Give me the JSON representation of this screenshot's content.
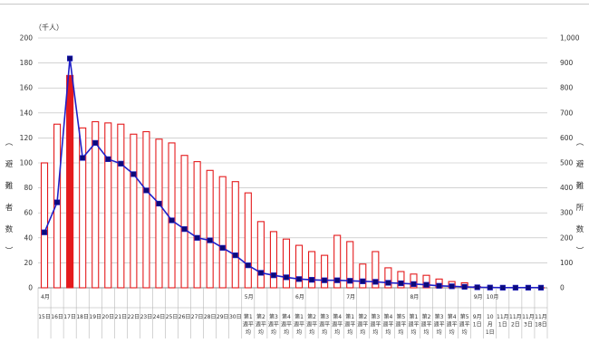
{
  "chart_data": {
    "type": "bar",
    "unit_label": "（千人）",
    "ylabel_left": "避難者数",
    "ylabel_right": "避難所数",
    "ylim_left": [
      0,
      200
    ],
    "ylim_right": [
      0,
      1000
    ],
    "yticks_left": [
      "0",
      "20",
      "40",
      "60",
      "80",
      "100",
      "120",
      "140",
      "160",
      "180",
      "200"
    ],
    "yticks_right": [
      "0",
      "100",
      "200",
      "300",
      "400",
      "500",
      "600",
      "700",
      "800",
      "900",
      "1,000"
    ],
    "grid": true,
    "month_labels": [
      {
        "index": 0,
        "text": "4月"
      },
      {
        "index": 16,
        "text": "5月"
      },
      {
        "index": 20,
        "text": "6月"
      },
      {
        "index": 24,
        "text": "7月"
      },
      {
        "index": 29,
        "text": "8月"
      },
      {
        "index": 34,
        "text": "9月"
      },
      {
        "index": 35,
        "text": "10月"
      }
    ],
    "categories": [
      [
        "15日"
      ],
      [
        "16日"
      ],
      [
        "17日"
      ],
      [
        "18日"
      ],
      [
        "19日"
      ],
      [
        "20日"
      ],
      [
        "21日"
      ],
      [
        "22日"
      ],
      [
        "23日"
      ],
      [
        "24日"
      ],
      [
        "25日"
      ],
      [
        "26日"
      ],
      [
        "27日"
      ],
      [
        "28日"
      ],
      [
        "29日"
      ],
      [
        "30日"
      ],
      [
        "第1",
        "週平",
        "均"
      ],
      [
        "第2",
        "週平",
        "均"
      ],
      [
        "第3",
        "週平",
        "均"
      ],
      [
        "第4",
        "週平",
        "均"
      ],
      [
        "第1",
        "週平",
        "均"
      ],
      [
        "第2",
        "週平",
        "均"
      ],
      [
        "第3",
        "週平",
        "均"
      ],
      [
        "第4",
        "週平",
        "均"
      ],
      [
        "第1",
        "週平",
        "均"
      ],
      [
        "第2",
        "週平",
        "均"
      ],
      [
        "第3",
        "週平",
        "均"
      ],
      [
        "第4",
        "週平",
        "均"
      ],
      [
        "第5",
        "週平",
        "均"
      ],
      [
        "第1",
        "週平",
        "均"
      ],
      [
        "第2",
        "週平",
        "均"
      ],
      [
        "第3",
        "週平",
        "均"
      ],
      [
        "第4",
        "週平",
        "均"
      ],
      [
        "第5",
        "週平",
        "均"
      ],
      [
        "9月",
        "1日"
      ],
      [
        "10",
        "月",
        "1日"
      ],
      [
        "11月",
        "1日"
      ],
      [
        "11月",
        "2日"
      ],
      [
        "11月",
        "3日"
      ],
      [
        "11月",
        "18日"
      ]
    ],
    "series": [
      {
        "axis": "left",
        "kind": "bar",
        "color": "#e41a1c",
        "highlight_index": 2,
        "values": [
          100,
          131,
          170,
          128,
          133,
          132,
          131,
          123,
          125,
          119,
          116,
          106,
          101,
          94,
          89,
          85,
          76,
          53,
          45,
          39,
          34,
          29,
          26,
          42,
          37,
          19,
          29,
          16,
          13,
          11,
          10,
          7,
          5,
          4,
          1,
          0.5,
          0.3,
          0.2,
          0.2,
          0.1
        ]
      },
      {
        "axis": "right",
        "kind": "line",
        "color": "#2020c8",
        "marker_color": "#0b0b7a",
        "values": [
          222,
          342,
          918,
          520,
          580,
          515,
          497,
          455,
          390,
          337,
          270,
          235,
          200,
          190,
          160,
          130,
          90,
          60,
          50,
          42,
          35,
          32,
          30,
          30,
          28,
          26,
          24,
          20,
          18,
          15,
          12,
          8,
          6,
          4,
          2,
          1,
          0.5,
          0.5,
          0.5,
          0.5
        ]
      }
    ]
  }
}
